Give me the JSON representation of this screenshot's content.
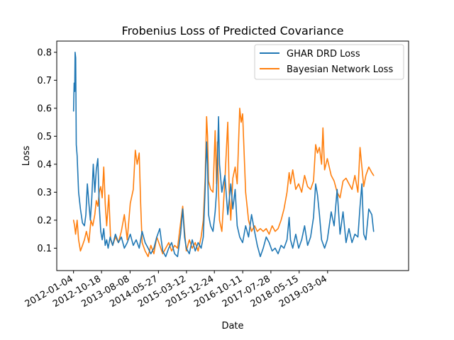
{
  "chart_data": {
    "type": "line",
    "title": "Frobenius Loss of Predicted Covariance",
    "xlabel": "Date",
    "ylabel": "Loss",
    "xlim": [
      "2011-07-15",
      "2021-06-15"
    ],
    "ylim": [
      0.02,
      0.84
    ],
    "x_ticks": [
      "2012-01-04",
      "2012-10-18",
      "2013-08-08",
      "2014-05-27",
      "2015-03-12",
      "2015-12-24",
      "2016-10-11",
      "2017-07-28",
      "2018-05-15",
      "2019-03-04"
    ],
    "y_ticks": [
      0.1,
      0.2,
      0.3,
      0.4,
      0.5,
      0.6,
      0.7,
      0.8
    ],
    "y_tick_labels": [
      "0.1",
      "0.2",
      "0.3",
      "0.4",
      "0.5",
      "0.6",
      "0.7",
      "0.8"
    ],
    "grid": false,
    "legend_position": "top-right",
    "series": [
      {
        "name": "GHAR DRD Loss",
        "color": "#1f77b4",
        "points": [
          [
            "2012-01-04",
            0.59
          ],
          [
            "2012-01-10",
            0.69
          ],
          [
            "2012-01-16",
            0.66
          ],
          [
            "2012-01-20",
            0.8
          ],
          [
            "2012-01-26",
            0.78
          ],
          [
            "2012-02-01",
            0.47
          ],
          [
            "2012-02-10",
            0.43
          ],
          [
            "2012-02-25",
            0.3
          ],
          [
            "2012-03-15",
            0.24
          ],
          [
            "2012-04-05",
            0.19
          ],
          [
            "2012-04-25",
            0.18
          ],
          [
            "2012-05-10",
            0.22
          ],
          [
            "2012-05-25",
            0.33
          ],
          [
            "2012-06-10",
            0.26
          ],
          [
            "2012-06-25",
            0.2
          ],
          [
            "2012-07-10",
            0.28
          ],
          [
            "2012-07-25",
            0.4
          ],
          [
            "2012-08-10",
            0.3
          ],
          [
            "2012-08-25",
            0.38
          ],
          [
            "2012-09-10",
            0.42
          ],
          [
            "2012-09-25",
            0.25
          ],
          [
            "2012-10-10",
            0.16
          ],
          [
            "2012-10-25",
            0.13
          ],
          [
            "2012-11-10",
            0.17
          ],
          [
            "2012-11-25",
            0.11
          ],
          [
            "2012-12-10",
            0.13
          ],
          [
            "2012-12-25",
            0.1
          ],
          [
            "2013-01-15",
            0.14
          ],
          [
            "2013-02-10",
            0.11
          ],
          [
            "2013-03-10",
            0.15
          ],
          [
            "2013-04-10",
            0.12
          ],
          [
            "2013-05-10",
            0.14
          ],
          [
            "2013-06-10",
            0.1
          ],
          [
            "2013-07-10",
            0.12
          ],
          [
            "2013-08-10",
            0.15
          ],
          [
            "2013-09-10",
            0.11
          ],
          [
            "2013-10-10",
            0.13
          ],
          [
            "2013-11-10",
            0.1
          ],
          [
            "2013-12-10",
            0.16
          ],
          [
            "2014-01-10",
            0.12
          ],
          [
            "2014-02-10",
            0.1
          ],
          [
            "2014-03-10",
            0.08
          ],
          [
            "2014-04-10",
            0.1
          ],
          [
            "2014-05-10",
            0.14
          ],
          [
            "2014-06-10",
            0.17
          ],
          [
            "2014-07-10",
            0.09
          ],
          [
            "2014-08-10",
            0.07
          ],
          [
            "2014-09-10",
            0.1
          ],
          [
            "2014-10-10",
            0.12
          ],
          [
            "2014-11-10",
            0.08
          ],
          [
            "2014-12-10",
            0.07
          ],
          [
            "2015-01-10",
            0.15
          ],
          [
            "2015-02-01",
            0.24
          ],
          [
            "2015-02-20",
            0.14
          ],
          [
            "2015-03-10",
            0.1
          ],
          [
            "2015-04-10",
            0.08
          ],
          [
            "2015-05-10",
            0.13
          ],
          [
            "2015-06-10",
            0.09
          ],
          [
            "2015-07-10",
            0.12
          ],
          [
            "2015-08-10",
            0.1
          ],
          [
            "2015-09-01",
            0.14
          ],
          [
            "2015-09-20",
            0.31
          ],
          [
            "2015-10-05",
            0.48
          ],
          [
            "2015-10-15",
            0.4
          ],
          [
            "2015-10-25",
            0.22
          ],
          [
            "2015-11-15",
            0.18
          ],
          [
            "2015-12-10",
            0.16
          ],
          [
            "2016-01-01",
            0.23
          ],
          [
            "2016-01-15",
            0.3
          ],
          [
            "2016-01-25",
            0.42
          ],
          [
            "2016-02-05",
            0.57
          ],
          [
            "2016-02-15",
            0.4
          ],
          [
            "2016-03-10",
            0.3
          ],
          [
            "2016-04-10",
            0.36
          ],
          [
            "2016-05-10",
            0.22
          ],
          [
            "2016-06-10",
            0.33
          ],
          [
            "2016-07-01",
            0.24
          ],
          [
            "2016-07-25",
            0.31
          ],
          [
            "2016-08-15",
            0.18
          ],
          [
            "2016-09-10",
            0.14
          ],
          [
            "2016-10-10",
            0.12
          ],
          [
            "2016-11-10",
            0.18
          ],
          [
            "2016-12-10",
            0.14
          ],
          [
            "2017-01-10",
            0.22
          ],
          [
            "2017-02-10",
            0.16
          ],
          [
            "2017-03-10",
            0.11
          ],
          [
            "2017-04-10",
            0.07
          ],
          [
            "2017-05-10",
            0.1
          ],
          [
            "2017-06-10",
            0.14
          ],
          [
            "2017-07-10",
            0.12
          ],
          [
            "2017-08-10",
            0.09
          ],
          [
            "2017-09-10",
            0.1
          ],
          [
            "2017-10-10",
            0.08
          ],
          [
            "2017-11-10",
            0.11
          ],
          [
            "2017-12-10",
            0.1
          ],
          [
            "2018-01-10",
            0.13
          ],
          [
            "2018-02-01",
            0.21
          ],
          [
            "2018-02-15",
            0.13
          ],
          [
            "2018-03-10",
            0.1
          ],
          [
            "2018-04-10",
            0.15
          ],
          [
            "2018-05-10",
            0.1
          ],
          [
            "2018-06-10",
            0.13
          ],
          [
            "2018-07-10",
            0.18
          ],
          [
            "2018-08-10",
            0.11
          ],
          [
            "2018-09-10",
            0.14
          ],
          [
            "2018-10-10",
            0.21
          ],
          [
            "2018-11-01",
            0.33
          ],
          [
            "2018-11-20",
            0.29
          ],
          [
            "2018-12-10",
            0.22
          ],
          [
            "2019-01-01",
            0.13
          ],
          [
            "2019-02-01",
            0.1
          ],
          [
            "2019-03-01",
            0.13
          ],
          [
            "2019-04-10",
            0.23
          ],
          [
            "2019-05-10",
            0.18
          ],
          [
            "2019-06-10",
            0.31
          ],
          [
            "2019-07-10",
            0.15
          ],
          [
            "2019-08-10",
            0.23
          ],
          [
            "2019-09-10",
            0.12
          ],
          [
            "2019-10-10",
            0.17
          ],
          [
            "2019-11-10",
            0.12
          ],
          [
            "2019-12-10",
            0.15
          ],
          [
            "2020-01-10",
            0.14
          ],
          [
            "2020-02-01",
            0.25
          ],
          [
            "2020-02-20",
            0.33
          ],
          [
            "2020-03-10",
            0.15
          ],
          [
            "2020-04-01",
            0.13
          ],
          [
            "2020-05-01",
            0.24
          ],
          [
            "2020-06-01",
            0.22
          ],
          [
            "2020-06-20",
            0.16
          ]
        ]
      },
      {
        "name": "Bayesian Network Loss",
        "color": "#ff7f0e",
        "points": [
          [
            "2012-01-04",
            0.2
          ],
          [
            "2012-01-15",
            0.18
          ],
          [
            "2012-01-25",
            0.15
          ],
          [
            "2012-02-10",
            0.2
          ],
          [
            "2012-02-25",
            0.13
          ],
          [
            "2012-03-15",
            0.09
          ],
          [
            "2012-04-05",
            0.11
          ],
          [
            "2012-04-25",
            0.13
          ],
          [
            "2012-05-15",
            0.16
          ],
          [
            "2012-06-10",
            0.12
          ],
          [
            "2012-07-01",
            0.2
          ],
          [
            "2012-07-20",
            0.18
          ],
          [
            "2012-08-10",
            0.22
          ],
          [
            "2012-08-25",
            0.27
          ],
          [
            "2012-09-10",
            0.25
          ],
          [
            "2012-09-25",
            0.3
          ],
          [
            "2012-10-10",
            0.32
          ],
          [
            "2012-10-25",
            0.28
          ],
          [
            "2012-11-10",
            0.39
          ],
          [
            "2012-11-25",
            0.26
          ],
          [
            "2012-12-10",
            0.18
          ],
          [
            "2013-01-01",
            0.29
          ],
          [
            "2013-01-20",
            0.13
          ],
          [
            "2013-02-10",
            0.11
          ],
          [
            "2013-03-10",
            0.14
          ],
          [
            "2013-04-10",
            0.12
          ],
          [
            "2013-05-10",
            0.16
          ],
          [
            "2013-06-10",
            0.22
          ],
          [
            "2013-07-10",
            0.13
          ],
          [
            "2013-08-10",
            0.26
          ],
          [
            "2013-09-10",
            0.31
          ],
          [
            "2013-10-01",
            0.45
          ],
          [
            "2013-10-20",
            0.4
          ],
          [
            "2013-11-10",
            0.44
          ],
          [
            "2013-11-25",
            0.26
          ],
          [
            "2013-12-10",
            0.12
          ],
          [
            "2014-01-10",
            0.09
          ],
          [
            "2014-02-10",
            0.07
          ],
          [
            "2014-03-10",
            0.11
          ],
          [
            "2014-04-10",
            0.08
          ],
          [
            "2014-05-10",
            0.14
          ],
          [
            "2014-06-10",
            0.11
          ],
          [
            "2014-07-10",
            0.08
          ],
          [
            "2014-08-10",
            0.1
          ],
          [
            "2014-09-10",
            0.12
          ],
          [
            "2014-10-10",
            0.09
          ],
          [
            "2014-11-10",
            0.11
          ],
          [
            "2014-12-10",
            0.1
          ],
          [
            "2015-01-10",
            0.19
          ],
          [
            "2015-02-01",
            0.25
          ],
          [
            "2015-02-20",
            0.16
          ],
          [
            "2015-03-10",
            0.09
          ],
          [
            "2015-04-10",
            0.13
          ],
          [
            "2015-05-10",
            0.1
          ],
          [
            "2015-06-10",
            0.12
          ],
          [
            "2015-07-10",
            0.09
          ],
          [
            "2015-08-10",
            0.14
          ],
          [
            "2015-09-01",
            0.2
          ],
          [
            "2015-09-20",
            0.35
          ],
          [
            "2015-10-05",
            0.57
          ],
          [
            "2015-10-15",
            0.5
          ],
          [
            "2015-10-25",
            0.34
          ],
          [
            "2015-11-15",
            0.31
          ],
          [
            "2015-12-10",
            0.3
          ],
          [
            "2016-01-01",
            0.52
          ],
          [
            "2016-01-15",
            0.33
          ],
          [
            "2016-01-25",
            0.48
          ],
          [
            "2016-02-05",
            0.3
          ],
          [
            "2016-02-15",
            0.2
          ],
          [
            "2016-03-10",
            0.16
          ],
          [
            "2016-04-10",
            0.34
          ],
          [
            "2016-05-10",
            0.55
          ],
          [
            "2016-05-25",
            0.3
          ],
          [
            "2016-06-10",
            0.2
          ],
          [
            "2016-07-01",
            0.35
          ],
          [
            "2016-07-25",
            0.39
          ],
          [
            "2016-08-15",
            0.33
          ],
          [
            "2016-09-10",
            0.6
          ],
          [
            "2016-09-25",
            0.55
          ],
          [
            "2016-10-10",
            0.58
          ],
          [
            "2016-11-10",
            0.3
          ],
          [
            "2016-12-10",
            0.2
          ],
          [
            "2017-01-10",
            0.16
          ],
          [
            "2017-02-10",
            0.18
          ],
          [
            "2017-03-10",
            0.16
          ],
          [
            "2017-04-10",
            0.17
          ],
          [
            "2017-05-10",
            0.16
          ],
          [
            "2017-06-10",
            0.17
          ],
          [
            "2017-07-10",
            0.15
          ],
          [
            "2017-08-10",
            0.18
          ],
          [
            "2017-09-10",
            0.16
          ],
          [
            "2017-10-10",
            0.17
          ],
          [
            "2017-11-10",
            0.2
          ],
          [
            "2017-12-10",
            0.24
          ],
          [
            "2018-01-10",
            0.3
          ],
          [
            "2018-02-01",
            0.37
          ],
          [
            "2018-02-15",
            0.33
          ],
          [
            "2018-03-10",
            0.38
          ],
          [
            "2018-04-10",
            0.31
          ],
          [
            "2018-05-10",
            0.33
          ],
          [
            "2018-06-10",
            0.3
          ],
          [
            "2018-07-10",
            0.36
          ],
          [
            "2018-08-10",
            0.32
          ],
          [
            "2018-09-10",
            0.31
          ],
          [
            "2018-10-10",
            0.34
          ],
          [
            "2018-11-01",
            0.47
          ],
          [
            "2018-11-20",
            0.44
          ],
          [
            "2018-12-10",
            0.46
          ],
          [
            "2019-01-01",
            0.4
          ],
          [
            "2019-01-15",
            0.53
          ],
          [
            "2019-02-01",
            0.38
          ],
          [
            "2019-03-01",
            0.42
          ],
          [
            "2019-04-10",
            0.36
          ],
          [
            "2019-05-10",
            0.34
          ],
          [
            "2019-06-10",
            0.3
          ],
          [
            "2019-07-10",
            0.28
          ],
          [
            "2019-08-10",
            0.34
          ],
          [
            "2019-09-10",
            0.35
          ],
          [
            "2019-10-10",
            0.33
          ],
          [
            "2019-11-10",
            0.31
          ],
          [
            "2019-12-10",
            0.36
          ],
          [
            "2020-01-10",
            0.3
          ],
          [
            "2020-02-01",
            0.46
          ],
          [
            "2020-02-20",
            0.39
          ],
          [
            "2020-03-10",
            0.32
          ],
          [
            "2020-04-01",
            0.36
          ],
          [
            "2020-05-01",
            0.39
          ],
          [
            "2020-06-01",
            0.37
          ],
          [
            "2020-06-20",
            0.36
          ]
        ]
      }
    ]
  }
}
